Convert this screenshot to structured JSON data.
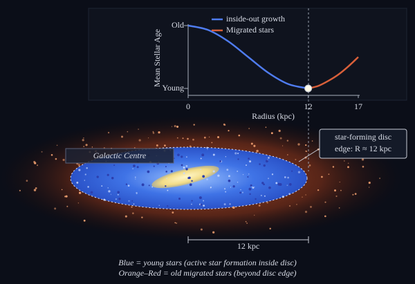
{
  "chart_data": {
    "type": "line",
    "xlabel": "Radius (kpc)",
    "ylabel": "Mean Stellar Age",
    "xlim": [
      0,
      17
    ],
    "xticks": [
      0,
      12,
      17
    ],
    "ylim": [
      0,
      1
    ],
    "yticks": [
      {
        "value": 0,
        "label": "Young"
      },
      {
        "value": 1,
        "label": "Old"
      }
    ],
    "series": [
      {
        "name": "inside-out growth",
        "color": "#4f7cf0",
        "x": [
          0,
          2,
          4,
          6,
          8,
          10,
          12
        ],
        "values": [
          1,
          0.93,
          0.75,
          0.5,
          0.25,
          0.07,
          0
        ]
      },
      {
        "name": "Migrated stars",
        "color": "#d9603a",
        "x": [
          12,
          13,
          14,
          15,
          16,
          17
        ],
        "values": [
          0,
          0.04,
          0.12,
          0.22,
          0.35,
          0.5
        ]
      }
    ],
    "legend": "upper right"
  },
  "illustration": {
    "centre_label": "Galactic Centre",
    "disc_edge_label": [
      "star-forming disc",
      "edge: R ≈ 12 kpc"
    ],
    "scale_label": "12 kpc",
    "captions": [
      "Blue = young stars (active star formation inside disc)",
      "Orange–Red = old migrated stars (beyond disc edge)"
    ]
  }
}
